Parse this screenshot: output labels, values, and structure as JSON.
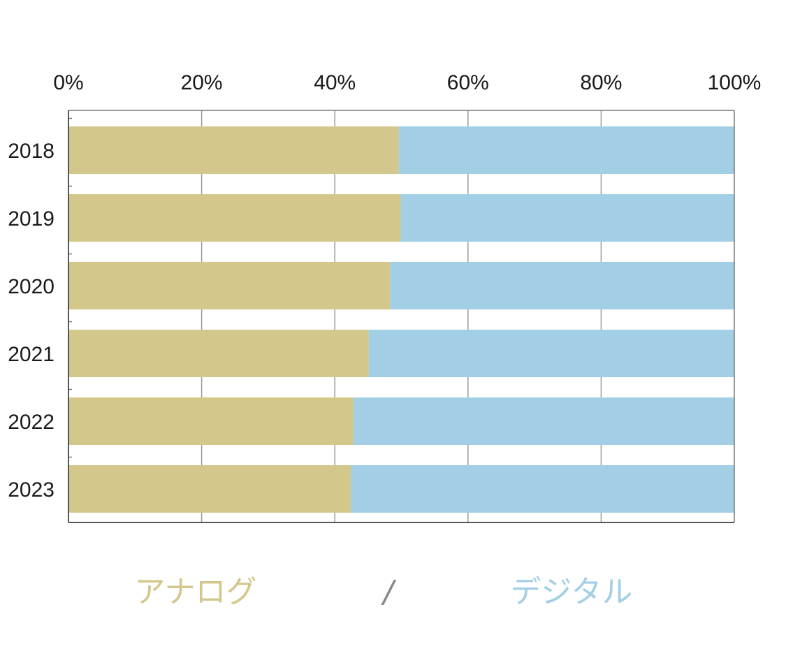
{
  "chart_data": {
    "type": "bar",
    "orientation": "horizontal",
    "stacked": true,
    "percent_scale": true,
    "categories": [
      "2018",
      "2019",
      "2020",
      "2021",
      "2022",
      "2023"
    ],
    "series": [
      {
        "name": "アナログ",
        "color": "#d4c78c",
        "values": [
          49.6,
          49.9,
          48.3,
          45.1,
          42.8,
          42.4
        ]
      },
      {
        "name": "デジタル",
        "color": "#a2cfe6",
        "values": [
          50.4,
          50.1,
          51.7,
          54.9,
          57.2,
          57.6
        ]
      }
    ],
    "x_ticks": [
      "0%",
      "20%",
      "40%",
      "60%",
      "80%",
      "100%"
    ],
    "xlim": [
      0,
      100
    ],
    "x_axis_position": "top",
    "grid": true,
    "legend": {
      "position": "bottom",
      "separator": "/"
    }
  }
}
